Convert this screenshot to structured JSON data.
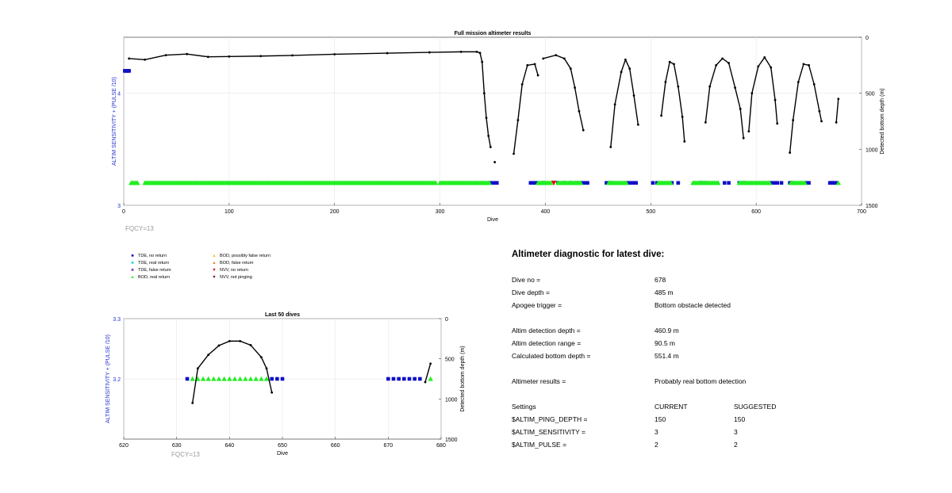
{
  "charts": [
    {
      "id": "full",
      "type": "scatter",
      "title": "Full mission altimeter results",
      "xlabel": "Dive",
      "ylabel_left": "ALTIM SENSITIVITY + (PULSE /10)",
      "ylabel_right": "Detected bottom depth (m)",
      "xlim": [
        0,
        700
      ],
      "ylim_left": [
        3,
        4.5
      ],
      "ylim_right": [
        0,
        1500
      ],
      "right_axis_inverted": true,
      "xticks": [
        "0",
        "100",
        "200",
        "300",
        "400",
        "500",
        "600",
        "700"
      ],
      "yticks_left": [
        "3",
        "4"
      ],
      "yticks_right": [
        "0",
        "500",
        "1000",
        "1500"
      ],
      "fqcy_label": "FQCY=13"
    },
    {
      "id": "last50",
      "type": "scatter",
      "title": "Last 50 dives",
      "xlabel": "Dive",
      "ylabel_left": "ALTIM SENSITIVITY + (PULSE /10)",
      "ylabel_right": "Detected bottom depth (m)",
      "xlim": [
        620,
        680
      ],
      "ylim_left": [
        3.1,
        3.3
      ],
      "ylim_right": [
        0,
        1500
      ],
      "right_axis_inverted": true,
      "xticks": [
        "620",
        "630",
        "640",
        "650",
        "660",
        "670",
        "680"
      ],
      "yticks_left": [
        "3.2",
        "3.3"
      ],
      "yticks_right": [
        "0",
        "500",
        "1000",
        "1500"
      ],
      "fqcy_label": "FQCY=13"
    }
  ],
  "chart_data": [
    {
      "type": "scatter",
      "title": "Full mission altimeter results",
      "series": [
        {
          "name": "TDE, no return",
          "marker": "square",
          "color": "#1010c8",
          "values": [
            [
              1,
              4.2
            ],
            [
              2,
              4.2
            ],
            [
              3,
              4.2
            ],
            [
              4,
              4.2
            ],
            [
              5,
              4.2
            ],
            [
              348,
              3.2
            ],
            [
              350,
              3.2
            ],
            [
              352,
              3.2
            ],
            [
              354,
              3.2
            ],
            [
              386,
              3.2
            ],
            [
              388,
              3.2
            ],
            [
              390,
              3.2
            ],
            [
              392,
              3.2
            ],
            [
              398,
              3.2
            ],
            [
              412,
              3.2
            ],
            [
              418,
              3.2
            ],
            [
              424,
              3.2
            ],
            [
              430,
              3.2
            ],
            [
              434,
              3.2
            ],
            [
              436,
              3.2
            ],
            [
              438,
              3.2
            ],
            [
              440,
              3.2
            ],
            [
              458,
              3.2
            ],
            [
              462,
              3.2
            ],
            [
              478,
              3.2
            ],
            [
              480,
              3.2
            ],
            [
              482,
              3.2
            ],
            [
              484,
              3.2
            ],
            [
              486,
              3.2
            ],
            [
              502,
              3.2
            ],
            [
              506,
              3.2
            ],
            [
              520,
              3.2
            ],
            [
              526,
              3.2
            ],
            [
              548,
              3.2
            ],
            [
              552,
              3.2
            ],
            [
              570,
              3.2
            ],
            [
              574,
              3.2
            ],
            [
              584,
              3.2
            ],
            [
              588,
              3.2
            ],
            [
              614,
              3.2
            ],
            [
              616,
              3.2
            ],
            [
              618,
              3.2
            ],
            [
              620,
              3.2
            ],
            [
              624,
              3.2
            ],
            [
              632,
              3.2
            ],
            [
              634,
              3.2
            ],
            [
              648,
              3.2
            ],
            [
              650,
              3.2
            ],
            [
              670,
              3.2
            ],
            [
              671,
              3.2
            ],
            [
              672,
              3.2
            ],
            [
              673,
              3.2
            ],
            [
              674,
              3.2
            ],
            [
              675,
              3.2
            ],
            [
              676,
              3.2
            ]
          ]
        },
        {
          "name": "BOD, real return",
          "marker": "triangle",
          "color": "#22ee22",
          "x_ranges": [
            [
              7,
              14
            ],
            [
              20,
              296
            ],
            [
              300,
              347
            ],
            [
              393,
              405
            ],
            [
              412,
              434
            ],
            [
              460,
              477
            ],
            [
              507,
              520
            ],
            [
              540,
              565
            ],
            [
              584,
              614
            ],
            [
              633,
              647
            ],
            [
              678,
              678
            ]
          ],
          "y": 3.2
        },
        {
          "name": "NVV, no return",
          "marker": "triangle-down",
          "color": "#dd1111",
          "values": [
            [
              408,
              3.2
            ]
          ]
        },
        {
          "name": "Bottom depth",
          "marker": "dot-line",
          "color": "#000000",
          "axis": "right",
          "segments": [
            [
              [
                5,
                190
              ],
              [
                20,
                200
              ],
              [
                40,
                160
              ],
              [
                60,
                150
              ],
              [
                80,
                175
              ],
              [
                100,
                172
              ],
              [
                130,
                168
              ],
              [
                160,
                162
              ],
              [
                200,
                152
              ],
              [
                250,
                142
              ],
              [
                290,
                135
              ],
              [
                320,
                130
              ],
              [
                335,
                130
              ],
              [
                338,
                140
              ],
              [
                340,
                220
              ],
              [
                342,
                500
              ],
              [
                344,
                720
              ],
              [
                346,
                880
              ],
              [
                348,
                980
              ]
            ],
            [
              [
                352,
                1115
              ]
            ],
            [
              [
                370,
                1040
              ],
              [
                374,
                740
              ],
              [
                378,
                420
              ],
              [
                383,
                250
              ],
              [
                390,
                240
              ],
              [
                393,
                340
              ]
            ],
            [
              [
                398,
                190
              ],
              [
                410,
                160
              ],
              [
                418,
                190
              ],
              [
                424,
                280
              ],
              [
                428,
                450
              ],
              [
                432,
                660
              ],
              [
                436,
                830
              ]
            ],
            [
              [
                462,
                980
              ],
              [
                466,
                600
              ],
              [
                472,
                310
              ],
              [
                476,
                200
              ],
              [
                480,
                280
              ],
              [
                484,
                520
              ],
              [
                488,
                780
              ]
            ],
            [
              [
                510,
                700
              ],
              [
                514,
                400
              ],
              [
                518,
                220
              ],
              [
                522,
                240
              ],
              [
                526,
                440
              ],
              [
                530,
                710
              ],
              [
                532,
                930
              ]
            ],
            [
              [
                552,
                760
              ],
              [
                556,
                440
              ],
              [
                562,
                250
              ],
              [
                568,
                190
              ],
              [
                574,
                230
              ],
              [
                580,
                450
              ],
              [
                585,
                640
              ],
              [
                588,
                900
              ]
            ],
            [
              [
                593,
                840
              ],
              [
                596,
                500
              ],
              [
                602,
                260
              ],
              [
                608,
                180
              ],
              [
                614,
                270
              ],
              [
                618,
                560
              ],
              [
                620,
                770
              ]
            ],
            [
              [
                632,
                1030
              ],
              [
                635,
                740
              ],
              [
                640,
                400
              ],
              [
                645,
                240
              ],
              [
                650,
                250
              ],
              [
                655,
                420
              ],
              [
                660,
                660
              ],
              [
                662,
                750
              ]
            ],
            [
              [
                676,
                760
              ],
              [
                678,
                550
              ]
            ]
          ]
        }
      ]
    },
    {
      "type": "scatter",
      "title": "Last 50 dives",
      "series": [
        {
          "name": "TDE, no return",
          "marker": "square",
          "color": "#1010c8",
          "values": [
            [
              632,
              3.2
            ],
            [
              648,
              3.2
            ],
            [
              649,
              3.2
            ],
            [
              650,
              3.2
            ],
            [
              670,
              3.2
            ],
            [
              671,
              3.2
            ],
            [
              672,
              3.2
            ],
            [
              673,
              3.2
            ],
            [
              674,
              3.2
            ],
            [
              675,
              3.2
            ],
            [
              676,
              3.2
            ]
          ]
        },
        {
          "name": "BOD, real return",
          "marker": "triangle",
          "color": "#22ee22",
          "values": [
            [
              633,
              3.2
            ],
            [
              634,
              3.2
            ],
            [
              635,
              3.2
            ],
            [
              636,
              3.2
            ],
            [
              637,
              3.2
            ],
            [
              638,
              3.2
            ],
            [
              639,
              3.2
            ],
            [
              640,
              3.2
            ],
            [
              641,
              3.2
            ],
            [
              642,
              3.2
            ],
            [
              643,
              3.2
            ],
            [
              644,
              3.2
            ],
            [
              645,
              3.2
            ],
            [
              646,
              3.2
            ],
            [
              647,
              3.2
            ],
            [
              678,
              3.2
            ]
          ]
        },
        {
          "name": "Bottom depth",
          "marker": "dot-line",
          "color": "#000000",
          "axis": "right",
          "segments": [
            [
              [
                633,
                1050
              ],
              [
                634,
                620
              ],
              [
                636,
                450
              ],
              [
                638,
                335
              ],
              [
                640,
                280
              ],
              [
                642,
                280
              ],
              [
                644,
                330
              ],
              [
                646,
                480
              ],
              [
                647,
                620
              ],
              [
                648,
                920
              ]
            ],
            [
              [
                677,
                790
              ],
              [
                678,
                560
              ]
            ]
          ]
        }
      ]
    }
  ],
  "legend": {
    "items": [
      {
        "label": "TDE, no return",
        "symbol": "■",
        "color": "#1010c8"
      },
      {
        "label": "TDE, real return",
        "symbol": "■",
        "color": "#22dddd"
      },
      {
        "label": "TDE, false return",
        "symbol": "■",
        "color": "#8833cc"
      },
      {
        "label": "BOD, real return",
        "symbol": "▲",
        "color": "#22ee22"
      },
      {
        "label": "BOD, possibly false return",
        "symbol": "▲",
        "color": "#f0c020"
      },
      {
        "label": "BOD, false return",
        "symbol": "▲",
        "color": "#f08020"
      },
      {
        "label": "NVV, no return",
        "symbol": "▼",
        "color": "#dd1111"
      },
      {
        "label": "NVV, not pinging",
        "symbol": "▼",
        "color": "#7a1010"
      }
    ]
  },
  "diagnostic": {
    "title": "Altimeter diagnostic for latest dive:",
    "rows": [
      {
        "label": "Dive no =",
        "value": "678"
      },
      {
        "label": "Dive depth =",
        "value": "485 m"
      },
      {
        "label": "Apogee trigger =",
        "value": "Bottom obstacle detected"
      },
      {
        "label": "Altim detection depth =",
        "value": "460.9 m"
      },
      {
        "label": "Altim detection range =",
        "value": "90.5 m"
      },
      {
        "label": "Calculated bottom depth =",
        "value": "551.4 m"
      },
      {
        "label": "Altimeter results =",
        "value": "Probably real bottom detection"
      }
    ],
    "settings": {
      "header": {
        "label": "Settings",
        "current": "CURRENT",
        "suggested": "SUGGESTED"
      },
      "rows": [
        {
          "label": "$ALTIM_PING_DEPTH =",
          "current": "150",
          "suggested": "150"
        },
        {
          "label": "$ALTIM_SENSITIVITY =",
          "current": "3",
          "suggested": "3"
        },
        {
          "label": "$ALTIM_PULSE =",
          "current": "2",
          "suggested": "2"
        }
      ]
    }
  }
}
